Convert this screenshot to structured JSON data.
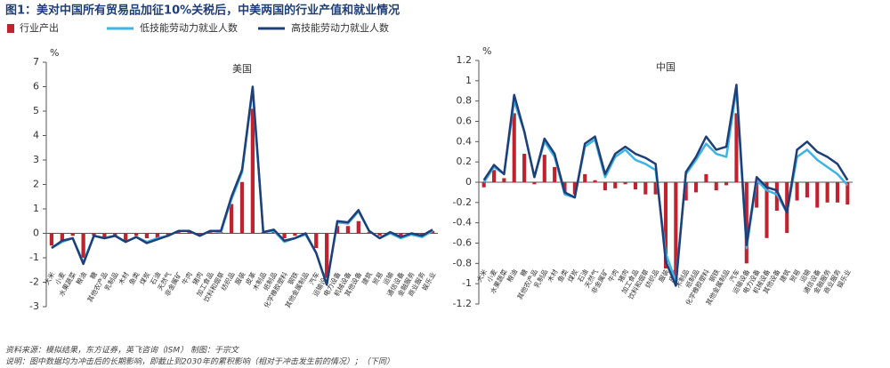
{
  "title": "图1：美对中国所有贸易品加征10%关税后，中美两国的行业产值和就业情况",
  "notes": [
    "资料来源：模拟结果，东方证券，英飞咨询（ISM）   制图：于宗文",
    "说明：图中数据均为冲击后的长期影响，即截止到2030年的累积影响（相对于冲击发生前的情况）；（下同）"
  ],
  "chart_data": [
    {
      "type": "combo",
      "title": "美国",
      "unit": "%",
      "categories": [
        "大米",
        "小麦",
        "水果蔬菜",
        "粮油",
        "糖",
        "其他农产品",
        "乳制品",
        "木材",
        "鱼类",
        "煤炭",
        "石油",
        "天然气",
        "非金属矿",
        "牛肉",
        "猪肉",
        "加工食品",
        "饮料和烟草",
        "纺织品",
        "服装",
        "皮革",
        "木制品",
        "纸制品",
        "化学橡胶塑料",
        "钢铁",
        "其他金属制品",
        "汽车",
        "运输设备",
        "电力设备",
        "机械设备",
        "其他设备",
        "建筑",
        "贸易",
        "运输",
        "通信设备",
        "金融服务",
        "商业服务",
        "娱乐业"
      ],
      "ylim": [
        -3,
        7
      ],
      "yticks": [
        -3,
        -2,
        -1,
        0,
        1,
        2,
        3,
        4,
        5,
        6,
        7
      ],
      "series": [
        {
          "name": "行业产出",
          "type": "bar",
          "color": "#c0222e",
          "values": [
            -0.5,
            -0.3,
            -0.1,
            -1.0,
            -0.1,
            -0.2,
            -0.1,
            -0.3,
            -0.1,
            -0.2,
            -0.2,
            -0.1,
            0.05,
            0.05,
            -0.05,
            0.05,
            0.05,
            1.2,
            2.1,
            5.1,
            0.05,
            0.1,
            -0.2,
            -0.1,
            -0.05,
            -0.6,
            -1.8,
            0.3,
            0.3,
            0.5,
            0.05,
            -0.1,
            -0.05,
            -0.1,
            -0.05,
            -0.1,
            0.1
          ]
        },
        {
          "name": "低技能劳动力就业人数",
          "type": "line",
          "color": "#3cb4e6",
          "values": [
            -0.6,
            -0.35,
            -0.2,
            -1.2,
            -0.1,
            -0.2,
            -0.1,
            -0.35,
            -0.15,
            -0.35,
            -0.2,
            -0.1,
            0.1,
            0.1,
            -0.1,
            0.1,
            0.05,
            1.4,
            2.5,
            5.9,
            0.05,
            0.1,
            -0.35,
            -0.2,
            -0.05,
            -0.8,
            -2.1,
            0.45,
            0.4,
            0.9,
            0.1,
            -0.2,
            0.0,
            -0.2,
            -0.05,
            -0.15,
            0.1
          ]
        },
        {
          "name": "高技能劳动力就业人数",
          "type": "line",
          "color": "#1f3f7a",
          "values": [
            -0.6,
            -0.3,
            -0.2,
            -1.25,
            -0.1,
            -0.2,
            -0.1,
            -0.35,
            -0.15,
            -0.4,
            -0.25,
            -0.1,
            0.1,
            0.1,
            -0.1,
            0.1,
            0.1,
            1.5,
            2.6,
            6.0,
            0.05,
            0.15,
            -0.3,
            -0.2,
            0.0,
            -0.8,
            -2.1,
            0.5,
            0.45,
            0.95,
            0.1,
            -0.2,
            0.05,
            -0.15,
            0.0,
            -0.1,
            0.15
          ]
        }
      ]
    },
    {
      "type": "combo",
      "title": "中国",
      "unit": "%",
      "categories": [
        "大米",
        "小麦",
        "水果蔬菜",
        "粮油",
        "糖",
        "其他农产品",
        "乳制品",
        "木材",
        "鱼类",
        "煤炭",
        "石油",
        "天然气",
        "非金属矿",
        "牛肉",
        "猪肉",
        "加工食品",
        "饮料和烟草",
        "纺织品",
        "服装",
        "皮革",
        "木制品",
        "纸制品",
        "化学橡胶塑料",
        "钢铁",
        "其他金属制品",
        "汽车",
        "运输设备",
        "电力设备",
        "机械设备",
        "其他设备",
        "建筑",
        "贸易",
        "运输",
        "通信设备",
        "金融服务",
        "商业服务",
        "娱乐业"
      ],
      "ylim": [
        -1.2,
        1.2
      ],
      "yticks": [
        -1.2,
        -1,
        -0.8,
        -0.6,
        -0.4,
        -0.2,
        0,
        0.2,
        0.4,
        0.6,
        0.8,
        1,
        1.2
      ],
      "series": [
        {
          "name": "行业产出",
          "type": "bar",
          "color": "#c0222e",
          "values": [
            -0.05,
            0.12,
            0.04,
            0.68,
            0.28,
            -0.02,
            0.27,
            0.15,
            -0.1,
            -0.12,
            0.08,
            0.02,
            -0.08,
            -0.06,
            -0.02,
            -0.07,
            -0.12,
            -0.12,
            -0.85,
            -0.98,
            -0.18,
            -0.1,
            0.08,
            -0.08,
            -0.03,
            0.68,
            -0.8,
            -0.25,
            -0.55,
            -0.28,
            -0.5,
            -0.18,
            -0.15,
            -0.25,
            -0.2,
            -0.2,
            -0.22
          ]
        },
        {
          "name": "低技能劳动力就业人数",
          "type": "line",
          "color": "#3cb4e6",
          "values": [
            0.0,
            0.15,
            0.08,
            0.8,
            0.5,
            0.05,
            0.4,
            0.25,
            -0.12,
            -0.15,
            0.35,
            0.42,
            0.05,
            0.25,
            0.32,
            0.22,
            0.18,
            0.12,
            -0.7,
            -0.98,
            0.08,
            0.22,
            0.38,
            0.28,
            0.25,
            0.92,
            -0.65,
            0.02,
            -0.08,
            -0.12,
            -0.3,
            0.25,
            0.32,
            0.22,
            0.15,
            0.08,
            -0.03
          ]
        },
        {
          "name": "高技能劳动力就业人数",
          "type": "line",
          "color": "#1f3f7a",
          "values": [
            0.02,
            0.17,
            0.08,
            0.86,
            0.5,
            0.05,
            0.43,
            0.28,
            -0.1,
            -0.15,
            0.38,
            0.45,
            0.08,
            0.28,
            0.35,
            0.28,
            0.24,
            0.18,
            -0.78,
            -1.02,
            0.1,
            0.25,
            0.45,
            0.32,
            0.35,
            0.96,
            -0.62,
            0.05,
            -0.05,
            -0.08,
            -0.3,
            0.32,
            0.4,
            0.3,
            0.25,
            0.18,
            0.02
          ]
        }
      ]
    }
  ]
}
